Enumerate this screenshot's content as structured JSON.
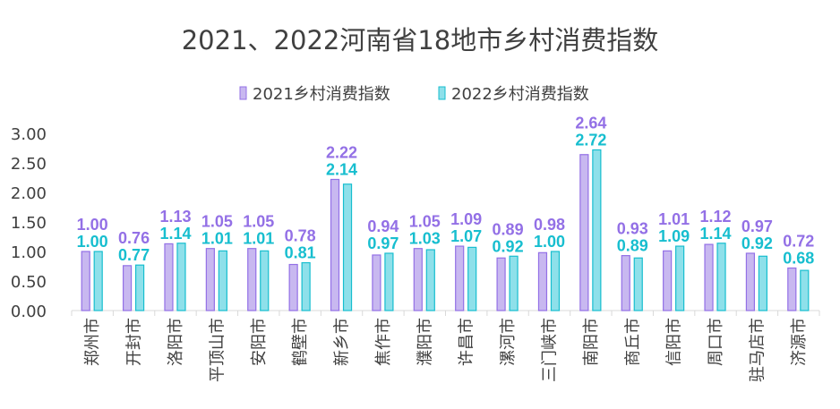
{
  "chart_data": {
    "type": "bar",
    "title": "2021、2022河南省18地市乡村消费指数",
    "categories": [
      "郑州市",
      "开封市",
      "洛阳市",
      "平顶山市",
      "安阳市",
      "鹤壁市",
      "新乡市",
      "焦作市",
      "濮阳市",
      "许昌市",
      "漯河市",
      "三门峡市",
      "南阳市",
      "商丘市",
      "信阳市",
      "周口市",
      "驻马店市",
      "济源市"
    ],
    "series": [
      {
        "name": "2021乡村消费指数",
        "color": "#9370e6",
        "fill": "#c8b8f0",
        "values": [
          1.0,
          0.76,
          1.13,
          1.05,
          1.05,
          0.78,
          2.22,
          0.94,
          1.05,
          1.09,
          0.89,
          0.98,
          2.64,
          0.93,
          1.01,
          1.12,
          0.97,
          0.72
        ]
      },
      {
        "name": "2022乡村消费指数",
        "color": "#17becf",
        "fill": "#8ee0ea",
        "values": [
          1.0,
          0.77,
          1.14,
          1.01,
          1.01,
          0.81,
          2.14,
          0.97,
          1.03,
          1.07,
          0.92,
          1.0,
          2.72,
          0.89,
          1.09,
          1.14,
          0.92,
          0.68
        ]
      }
    ],
    "yticks": [
      "0.00",
      "0.50",
      "1.00",
      "1.50",
      "2.00",
      "2.50",
      "3.00"
    ],
    "ylim": [
      0,
      3
    ],
    "legend": "top"
  }
}
